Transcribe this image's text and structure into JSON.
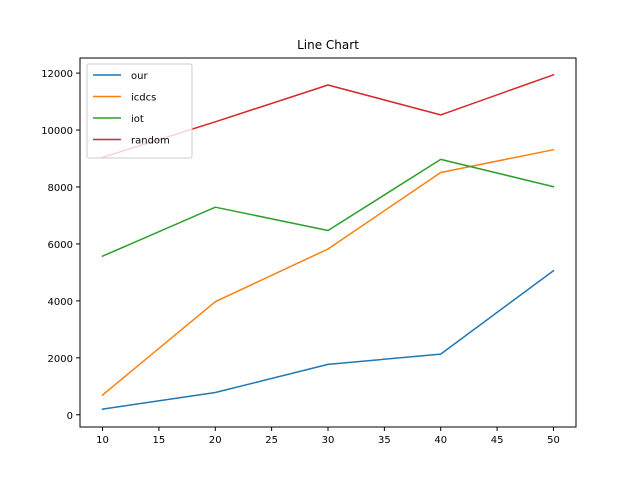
{
  "chart_data": {
    "type": "line",
    "title": "Line Chart",
    "xlabel": "",
    "ylabel": "",
    "x": [
      10,
      20,
      30,
      40,
      50
    ],
    "xlim": [
      8,
      52
    ],
    "ylim": [
      -430,
      12530
    ],
    "xticks": [
      10,
      15,
      20,
      25,
      30,
      35,
      40,
      45,
      50
    ],
    "yticks": [
      0,
      2000,
      4000,
      6000,
      8000,
      10000,
      12000
    ],
    "grid": false,
    "legend": "top-left",
    "series": [
      {
        "name": "our",
        "color": "#1f77b4",
        "values": [
          200,
          780,
          1770,
          2130,
          5060
        ]
      },
      {
        "name": "icdcs",
        "color": "#ff7f0e",
        "values": [
          690,
          3970,
          5820,
          8510,
          9310
        ]
      },
      {
        "name": "iot",
        "color": "#2ca02c",
        "values": [
          5570,
          7290,
          6470,
          8970,
          8010
        ]
      },
      {
        "name": "random",
        "color": "#d62728",
        "values": [
          9040,
          10290,
          11580,
          10530,
          11940
        ]
      }
    ]
  }
}
